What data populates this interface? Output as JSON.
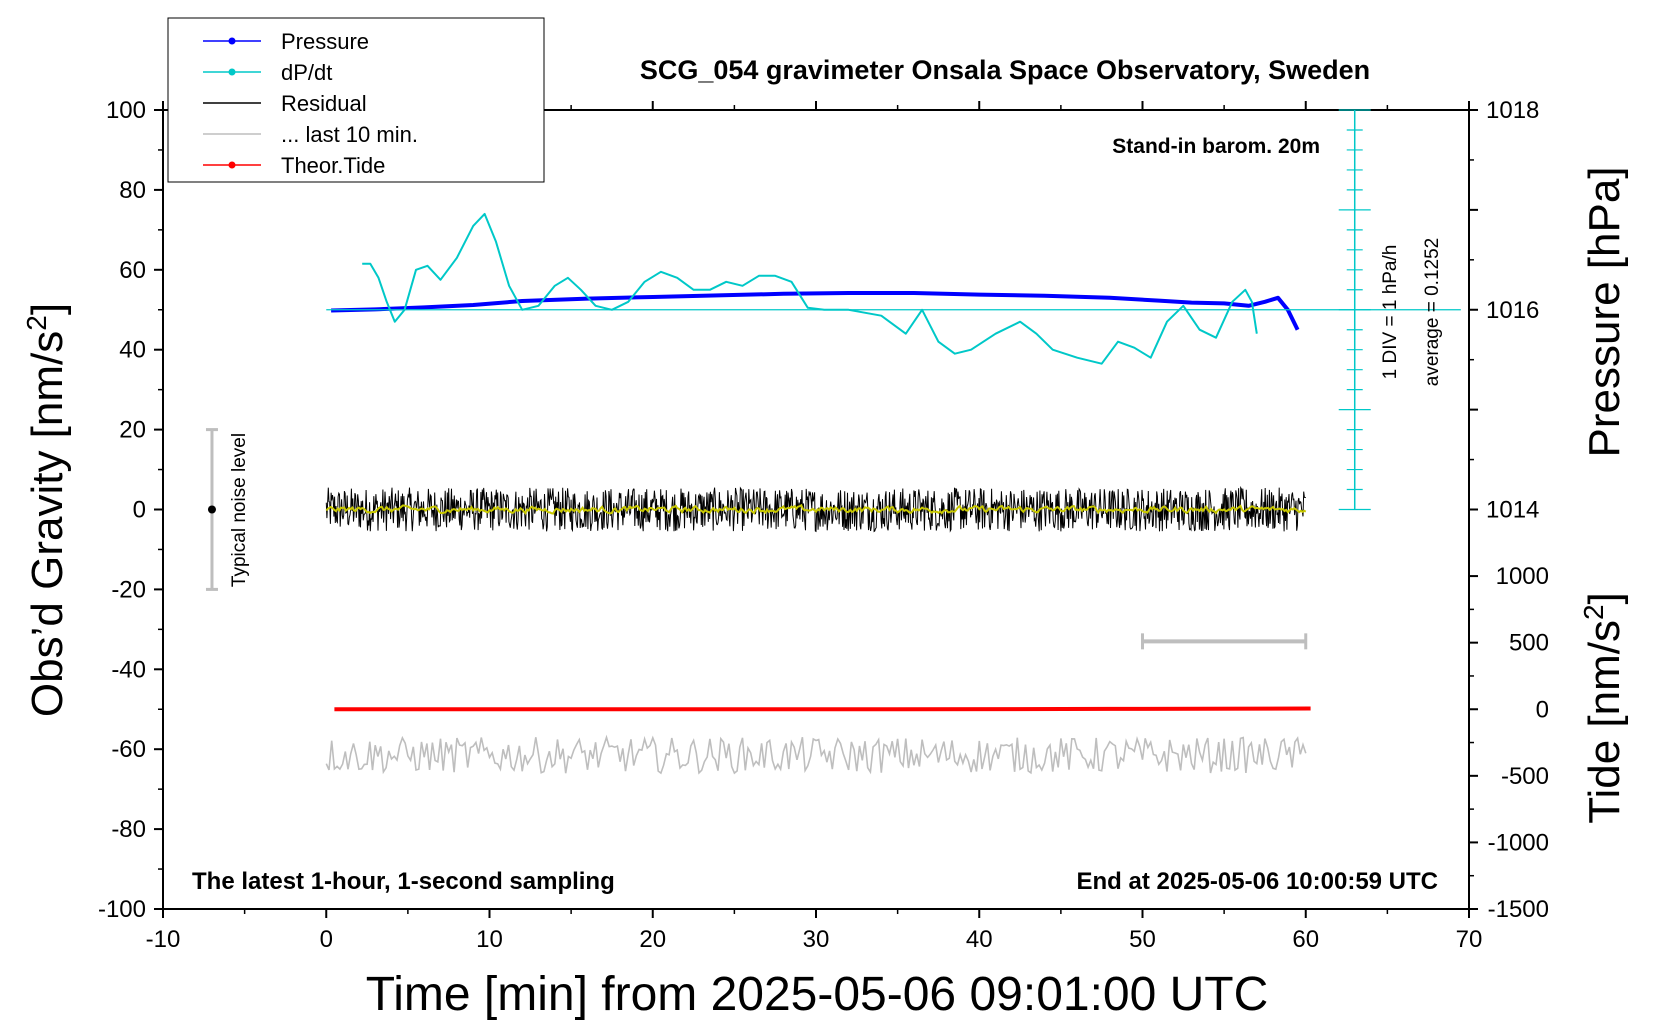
{
  "chart_data": {
    "type": "line",
    "title": "SCG_054 gravimeter Onsala Space Observatory, Sweden",
    "xlabel": "Time [min] from 2025-05-06 09:01:00 UTC",
    "ylabel_left_main": "Obs’d Gravity [nm/s",
    "ylabel_left_sup": "2",
    "ylabel_left_end": "]",
    "ylabel_right_pressure": "Pressure [hPa]",
    "ylabel_right_tide_main": "Tide [nm/s",
    "ylabel_right_tide_sup": "2",
    "ylabel_right_tide_end": "]",
    "xlim": [
      -10,
      70
    ],
    "ylim": [
      -100,
      100
    ],
    "x_ticks": [
      "-10",
      "0",
      "10",
      "20",
      "30",
      "40",
      "50",
      "60",
      "70"
    ],
    "y_ticks": [
      "100",
      "80",
      "60",
      "40",
      "20",
      "0",
      "-20",
      "-40",
      "-60",
      "-80",
      "-100"
    ],
    "pressure_ticks": [
      "1018",
      "1016",
      "1014"
    ],
    "pressure_tick_values": [
      1018,
      1016,
      1014
    ],
    "pressure_axis": {
      "ref_value": 1016,
      "ref_gravity": 50,
      "gravity_per_hPa": 25
    },
    "tide_ticks": [
      "1000",
      "500",
      "0",
      "-500",
      "-1000",
      "-1500"
    ],
    "tide_tick_values": [
      1000,
      500,
      0,
      -500,
      -1000,
      -1500
    ],
    "tide_axis": {
      "ref_value": 0,
      "ref_gravity": -50,
      "gravity_per_unit": 0.033333
    },
    "legend": [
      {
        "label": "Pressure",
        "color": "#0000ff",
        "marker": true
      },
      {
        "label": "dP/dt",
        "color": "#00c8c8",
        "marker": true
      },
      {
        "label": "Residual",
        "color": "#000000",
        "marker": false
      },
      {
        "label": "... last 10 min.",
        "color": "#bebebe",
        "marker": false
      },
      {
        "label": "Theor.Tide",
        "color": "#ff0000",
        "marker": true
      }
    ],
    "annotations": {
      "barometer": "Stand-in barom. 20m",
      "latest": "The latest 1-hour, 1-second sampling",
      "end_time": "End at 2025-05-06 10:00:59 UTC",
      "div_label": "1 DIV = 1 hPa/h",
      "average_label": "average = 0.1252",
      "noise_label": "Typical noise level"
    },
    "noise_bar": {
      "x": -7,
      "center": 0,
      "low": -20,
      "high": 20
    },
    "last10_bar": {
      "x_start": 50,
      "x_end": 60,
      "y": -33
    },
    "dpdt_axis": {
      "x": 63,
      "y_min": 0,
      "y_max": 100,
      "zero_line": 50,
      "tick_step": 5
    },
    "series": [
      {
        "name": "Pressure",
        "color": "#0000ff",
        "x": [
          0.3,
          3,
          6,
          9,
          12,
          16,
          20,
          24,
          28,
          32,
          36,
          40,
          44,
          48,
          51,
          53,
          55,
          56.5,
          57.5,
          58.3,
          58.9,
          59.5
        ],
        "y": [
          49.8,
          50.1,
          50.6,
          51.2,
          52.2,
          52.8,
          53.2,
          53.6,
          54.0,
          54.2,
          54.2,
          53.8,
          53.5,
          53.0,
          52.3,
          51.8,
          51.6,
          51.0,
          52.0,
          53.0,
          50.0,
          45.0
        ]
      },
      {
        "name": "dP/dt",
        "color": "#00c8c8",
        "x": [
          2.2,
          2.7,
          3.2,
          3.7,
          4.2,
          4.8,
          5.5,
          6.2,
          7.0,
          8.0,
          9.0,
          9.7,
          10.4,
          11.2,
          12.0,
          13.0,
          14.0,
          14.8,
          15.6,
          16.5,
          17.5,
          18.5,
          19.5,
          20.5,
          21.5,
          22.5,
          23.5,
          24.5,
          25.5,
          26.5,
          27.5,
          28.5,
          29.5,
          30.5,
          32,
          34,
          35.5,
          36.5,
          37.5,
          38.5,
          39.5,
          41,
          42.5,
          43.5,
          44.5,
          46,
          47.5,
          48.5,
          49.5,
          50.5,
          51.5,
          52.5,
          53.5,
          54.5,
          55.5,
          56.3,
          56.7,
          57
        ],
        "y": [
          61.5,
          61.5,
          58,
          52,
          47,
          50,
          60,
          61,
          57.5,
          63,
          71,
          74,
          67,
          56,
          50,
          51,
          56,
          58,
          55,
          51,
          50,
          52,
          57,
          59.5,
          58,
          55,
          55,
          57,
          56,
          58.5,
          58.5,
          57,
          50.5,
          50,
          50,
          48.5,
          44,
          50,
          42,
          39,
          40,
          44,
          47,
          44,
          40,
          38,
          36.5,
          42,
          40.5,
          38,
          47,
          51,
          45,
          43,
          52,
          55,
          52,
          44
        ]
      },
      {
        "name": "Residual",
        "color": "#000000",
        "x": [
          0,
          60
        ],
        "y": [
          0,
          0
        ],
        "noise_amplitude": 5.5
      },
      {
        "name": "Residual smoothed",
        "color": "#c8c800",
        "x": [
          0,
          60
        ],
        "y": [
          0,
          0
        ],
        "noise_amplitude": 1.5
      },
      {
        "name": "... last 10 min.",
        "color": "#bebebe",
        "x": [
          0,
          60
        ],
        "y": [
          -61.5,
          -61.5
        ],
        "noise_amplitude": 4.5
      },
      {
        "name": "Theor.Tide",
        "color": "#ff0000",
        "x": [
          0.5,
          35,
          48,
          60.3
        ],
        "y": [
          -50,
          -50,
          -49.9,
          -49.8
        ]
      }
    ]
  }
}
